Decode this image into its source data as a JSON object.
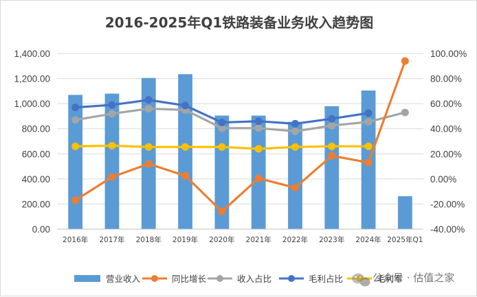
{
  "chart_data": {
    "type": "bar+line",
    "title": "2016-2025年Q1铁路装备业务收入趋势图",
    "categories": [
      "2016年",
      "2017年",
      "2018年",
      "2019年",
      "2020年",
      "2021年",
      "2022年",
      "2023年",
      "2024年",
      "2025年Q1"
    ],
    "y_left": {
      "ylim": [
        0,
        1400
      ],
      "ticks": [
        "0.00",
        "200.00",
        "400.00",
        "600.00",
        "800.00",
        "1,000.00",
        "1,200.00",
        "1,400.00"
      ]
    },
    "y_right": {
      "ylim": [
        -40,
        100
      ],
      "ticks": [
        "-40.00%",
        "-20.00%",
        "0.00%",
        "20.00%",
        "40.00%",
        "60.00%",
        "80.00%",
        "100.00%"
      ]
    },
    "series": [
      {
        "name": "营业收入",
        "type": "bar",
        "axis": "left",
        "color": "#5b9bd5",
        "values": [
          1070,
          1080,
          1205,
          1235,
          905,
          905,
          855,
          980,
          1105,
          262
        ]
      },
      {
        "name": "同比增长",
        "type": "line",
        "axis": "right",
        "color": "#ed7d31",
        "values": [
          -17,
          1.5,
          12,
          2.5,
          -26,
          0.5,
          -7,
          18.5,
          13,
          94
        ]
      },
      {
        "name": "收入占比",
        "type": "line",
        "axis": "right",
        "color": "#a5a5a5",
        "values": [
          47,
          52,
          56,
          55,
          40.5,
          40.5,
          38,
          42.5,
          45.5,
          53
        ]
      },
      {
        "name": "毛利占比",
        "type": "line",
        "axis": "right",
        "color": "#4472c4",
        "values": [
          57,
          59,
          63,
          58.5,
          45,
          46,
          44,
          48,
          52.5,
          null
        ]
      },
      {
        "name": "毛利率",
        "type": "line",
        "axis": "right",
        "color": "#ffc000",
        "values": [
          26,
          26.5,
          25.5,
          25.5,
          25.5,
          24,
          25.5,
          26,
          26,
          null
        ]
      }
    ],
    "legend_position": "bottom",
    "grid": true
  },
  "watermark": "公众号 · 估值之家"
}
